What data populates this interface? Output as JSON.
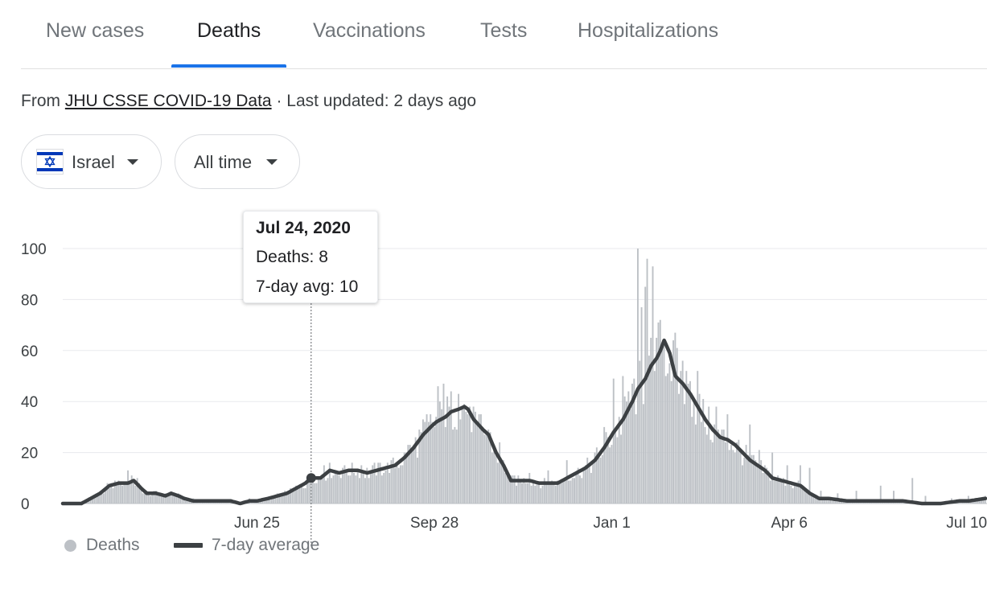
{
  "tabs": [
    {
      "label": "New cases",
      "active": false
    },
    {
      "label": "Deaths",
      "active": true
    },
    {
      "label": "Vaccinations",
      "active": false
    },
    {
      "label": "Tests",
      "active": false
    },
    {
      "label": "Hospitalizations",
      "active": false
    }
  ],
  "source": {
    "prefix": "From",
    "link_text": "JHU CSSE COVID-19 Data",
    "suffix": "· Last updated: 2 days ago"
  },
  "filters": {
    "country": {
      "label": "Israel",
      "icon": "israel-flag-icon"
    },
    "range": {
      "label": "All time",
      "icon": "chevron-down-icon"
    }
  },
  "tooltip": {
    "date": "Jul 24, 2020",
    "deaths": "Deaths: 8",
    "avg": "7-day avg: 10"
  },
  "legend": {
    "deaths": "Deaths",
    "avg": "7-day average"
  },
  "colors": {
    "accent": "#1a73e8",
    "bars": "#bdc1c6",
    "line": "#3c4043",
    "grid": "#e8eaed"
  },
  "chart_data": {
    "type": "bar",
    "y_ticks": [
      0,
      20,
      40,
      60,
      80,
      100
    ],
    "ylim": [
      0,
      100
    ],
    "x_ticks": [
      {
        "label": "Jun 25",
        "day": 104
      },
      {
        "label": "Sep 28",
        "day": 199
      },
      {
        "label": "Jan 1",
        "day": 294
      },
      {
        "label": "Apr 6",
        "day": 389
      },
      {
        "label": "Jul 10",
        "day": 484
      }
    ],
    "x_start": "Mar 13, 2020",
    "num_days": 495,
    "highlight": {
      "day": 133,
      "label": "Jul 24, 2020",
      "deaths": 8,
      "avg": 10
    },
    "series": [
      {
        "name": "7-day average",
        "points": [
          [
            0,
            0
          ],
          [
            10,
            0
          ],
          [
            15,
            2
          ],
          [
            20,
            4
          ],
          [
            25,
            7
          ],
          [
            30,
            8
          ],
          [
            35,
            8
          ],
          [
            38,
            9
          ],
          [
            42,
            6
          ],
          [
            45,
            4
          ],
          [
            50,
            4
          ],
          [
            55,
            3
          ],
          [
            58,
            4
          ],
          [
            62,
            3
          ],
          [
            65,
            2
          ],
          [
            70,
            1
          ],
          [
            80,
            1
          ],
          [
            90,
            1
          ],
          [
            95,
            0
          ],
          [
            100,
            1
          ],
          [
            104,
            1
          ],
          [
            110,
            2
          ],
          [
            115,
            3
          ],
          [
            120,
            4
          ],
          [
            125,
            6
          ],
          [
            130,
            8
          ],
          [
            133,
            10
          ],
          [
            138,
            10
          ],
          [
            143,
            13
          ],
          [
            148,
            12
          ],
          [
            153,
            13
          ],
          [
            158,
            13
          ],
          [
            163,
            12
          ],
          [
            168,
            13
          ],
          [
            173,
            14
          ],
          [
            178,
            15
          ],
          [
            183,
            18
          ],
          [
            188,
            22
          ],
          [
            193,
            27
          ],
          [
            197,
            30
          ],
          [
            200,
            32
          ],
          [
            205,
            34
          ],
          [
            208,
            36
          ],
          [
            212,
            37
          ],
          [
            215,
            38
          ],
          [
            217,
            37
          ],
          [
            220,
            33
          ],
          [
            225,
            29
          ],
          [
            228,
            27
          ],
          [
            232,
            20
          ],
          [
            236,
            15
          ],
          [
            240,
            9
          ],
          [
            245,
            9
          ],
          [
            250,
            9
          ],
          [
            255,
            8
          ],
          [
            260,
            8
          ],
          [
            265,
            8
          ],
          [
            270,
            10
          ],
          [
            275,
            12
          ],
          [
            280,
            14
          ],
          [
            285,
            17
          ],
          [
            290,
            22
          ],
          [
            295,
            28
          ],
          [
            300,
            33
          ],
          [
            305,
            40
          ],
          [
            308,
            45
          ],
          [
            312,
            49
          ],
          [
            315,
            54
          ],
          [
            318,
            57
          ],
          [
            320,
            60
          ],
          [
            322,
            64
          ],
          [
            325,
            59
          ],
          [
            328,
            50
          ],
          [
            332,
            47
          ],
          [
            336,
            43
          ],
          [
            340,
            38
          ],
          [
            344,
            33
          ],
          [
            348,
            29
          ],
          [
            352,
            26
          ],
          [
            356,
            25
          ],
          [
            360,
            23
          ],
          [
            364,
            20
          ],
          [
            368,
            17
          ],
          [
            372,
            15
          ],
          [
            376,
            13
          ],
          [
            380,
            10
          ],
          [
            385,
            9
          ],
          [
            390,
            8
          ],
          [
            395,
            7
          ],
          [
            400,
            4
          ],
          [
            405,
            2
          ],
          [
            410,
            2
          ],
          [
            420,
            1
          ],
          [
            430,
            1
          ],
          [
            440,
            1
          ],
          [
            450,
            1
          ],
          [
            460,
            0
          ],
          [
            470,
            0
          ],
          [
            480,
            1
          ],
          [
            485,
            1
          ],
          [
            494,
            2
          ]
        ]
      },
      {
        "name": "Deaths",
        "peaks": [
          [
            20,
            4
          ],
          [
            30,
            9
          ],
          [
            35,
            13
          ],
          [
            40,
            10
          ],
          [
            50,
            5
          ],
          [
            70,
            2
          ],
          [
            100,
            2
          ],
          [
            125,
            7
          ],
          [
            133,
            8
          ],
          [
            140,
            15
          ],
          [
            150,
            14
          ],
          [
            160,
            15
          ],
          [
            170,
            16
          ],
          [
            185,
            23
          ],
          [
            195,
            35
          ],
          [
            201,
            46
          ],
          [
            204,
            47
          ],
          [
            208,
            44
          ],
          [
            212,
            43
          ],
          [
            218,
            38
          ],
          [
            222,
            32
          ],
          [
            228,
            29
          ],
          [
            234,
            24
          ],
          [
            242,
            11
          ],
          [
            250,
            12
          ],
          [
            260,
            13
          ],
          [
            270,
            17
          ],
          [
            280,
            15
          ],
          [
            285,
            20
          ],
          [
            290,
            30
          ],
          [
            295,
            49
          ],
          [
            300,
            50
          ],
          [
            303,
            44
          ],
          [
            306,
            49
          ],
          [
            308,
            100
          ],
          [
            310,
            77
          ],
          [
            312,
            85
          ],
          [
            313,
            96
          ],
          [
            316,
            93
          ],
          [
            320,
            72
          ],
          [
            324,
            51
          ],
          [
            328,
            67
          ],
          [
            332,
            56
          ],
          [
            336,
            48
          ],
          [
            340,
            52
          ],
          [
            345,
            27
          ],
          [
            350,
            38
          ],
          [
            356,
            35
          ],
          [
            362,
            25
          ],
          [
            368,
            31
          ],
          [
            373,
            21
          ],
          [
            380,
            20
          ],
          [
            388,
            15
          ],
          [
            395,
            15
          ],
          [
            400,
            14
          ],
          [
            406,
            5
          ],
          [
            415,
            4
          ],
          [
            425,
            5
          ],
          [
            438,
            7
          ],
          [
            445,
            5
          ],
          [
            455,
            10
          ],
          [
            462,
            3
          ],
          [
            476,
            2
          ],
          [
            485,
            3
          ],
          [
            494,
            3
          ]
        ]
      }
    ]
  }
}
